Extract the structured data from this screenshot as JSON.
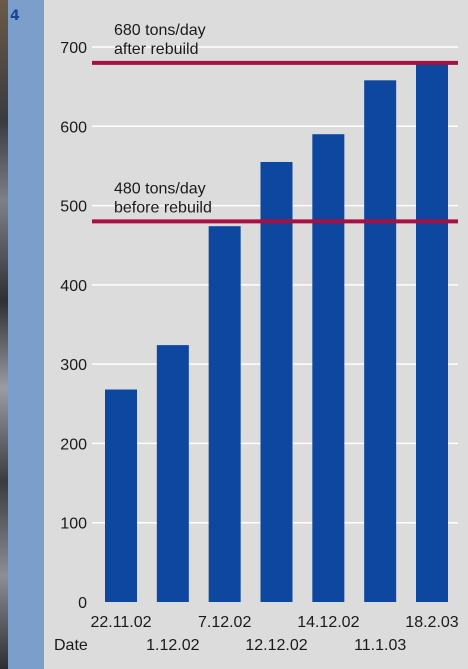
{
  "figure_number": "4",
  "colors": {
    "bar": "#0d47a0",
    "reference_line": "#a61042",
    "grid": "#ffffff",
    "plot_bg": "#dcdcdc",
    "accent": "#7b9fca"
  },
  "chart_data": {
    "type": "bar",
    "xlabel": "Date",
    "ylabel": "",
    "ylim": [
      0,
      700
    ],
    "yticks": [
      0,
      100,
      200,
      300,
      400,
      500,
      600,
      700
    ],
    "grid": true,
    "categories": [
      "22.11.02",
      "1.12.02",
      "7.12.02",
      "12.12.02",
      "14.12.02",
      "11.1.03",
      "18.2.03"
    ],
    "values": [
      268,
      324,
      474,
      555,
      590,
      658,
      680
    ],
    "reference_lines": [
      {
        "value": 680,
        "label_line1": "680 tons/day",
        "label_line2": "after rebuild"
      },
      {
        "value": 480,
        "label_line1": "480 tons/day",
        "label_line2": "before rebuild"
      }
    ]
  }
}
